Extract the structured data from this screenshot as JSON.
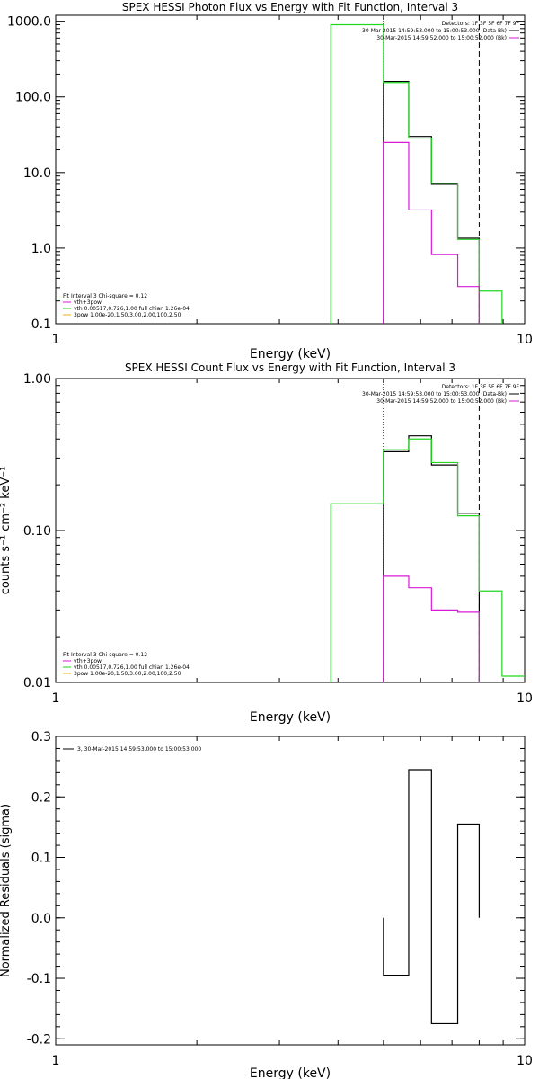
{
  "colors": {
    "black": "#000000",
    "green": "#22d622",
    "magenta": "#d81ad8"
  },
  "chart_data": [
    {
      "type": "line",
      "title": "SPEX HESSI Photon Flux vs Energy with Fit Function, Interval 3",
      "xlabel": "Energy (keV)",
      "ylabel": "",
      "xscale": "log",
      "yscale": "log",
      "xlim": [
        1,
        10
      ],
      "ylim": [
        0.1,
        1200
      ],
      "x_ticks": [
        "1",
        "10"
      ],
      "y_ticks": [
        {
          "value": 0.1,
          "label": "0.1"
        },
        {
          "value": 1,
          "label": "1.0"
        },
        {
          "value": 10,
          "label": "10.0"
        },
        {
          "value": 100,
          "label": "100.0"
        },
        {
          "value": 1000,
          "label": "1000.0"
        }
      ],
      "detectors": "Detectors: 1F 3F 5F 6F 7F 9F",
      "time_entries": [
        {
          "text": "30-Mar-2015 14:59:53.000 to 15:00:53.000 (Data-Bk)",
          "color": "#000000"
        },
        {
          "text": "30-Mar-2015 14:59:52.000 to 15:00:52.000 (Bk)",
          "color": "#d81ad8"
        }
      ],
      "fit_legend": {
        "header": "Fit Interval 3   Chi-square = 0.12",
        "items": [
          {
            "text": "vth+3pow",
            "color": "#d81ad8"
          },
          {
            "text": "vth 0.00517,0.726,1.00  full chian 1.26e-04",
            "color": "#22d622"
          },
          {
            "text": "3pow 1.00e-20,1.50,3.00,2.00,100,2.50",
            "color": "#e8b020"
          }
        ]
      },
      "vlines": [
        {
          "x": 5.0,
          "style": "dotted"
        },
        {
          "x": 8.0,
          "style": "dashed"
        }
      ],
      "series": [
        {
          "name": "Data-Bk",
          "color": "#000000",
          "edges": [
            5.0,
            5.66,
            6.33,
            7.2,
            8.0
          ],
          "values": [
            160,
            30,
            7.0,
            1.35
          ]
        },
        {
          "name": "vth+3pow",
          "color": "#22d622",
          "edges": [
            3.86,
            5.0,
            5.66,
            6.33,
            7.2,
            8.0,
            8.95
          ],
          "values": [
            900,
            155,
            28.5,
            7.2,
            1.3,
            0.27
          ]
        },
        {
          "name": "Bk",
          "color": "#d81ad8",
          "edges": [
            5.0,
            5.66,
            6.33,
            7.2,
            8.0
          ],
          "values": [
            25,
            3.2,
            0.82,
            0.31
          ]
        }
      ]
    },
    {
      "type": "line",
      "title": "SPEX HESSI Count Flux vs Energy with Fit Function, Interval 3",
      "xlabel": "Energy (keV)",
      "ylabel": "counts s⁻¹ cm⁻² keV⁻¹",
      "xscale": "log",
      "yscale": "log",
      "xlim": [
        1,
        10
      ],
      "ylim": [
        0.01,
        1.0
      ],
      "x_ticks": [
        "1",
        "10"
      ],
      "y_ticks": [
        {
          "value": 0.01,
          "label": "0.01"
        },
        {
          "value": 0.1,
          "label": "0.10"
        },
        {
          "value": 1,
          "label": "1.00"
        }
      ],
      "detectors": "Detectors: 1F 3F 5F 6F 7F 9F",
      "time_entries": [
        {
          "text": "30-Mar-2015 14:59:53.000 to 15:00:53.000 (Data-Bk)",
          "color": "#000000"
        },
        {
          "text": "30-Mar-2015 14:59:52.000 to 15:00:52.000 (Bk)",
          "color": "#d81ad8"
        }
      ],
      "fit_legend": {
        "header": "Fit Interval 3   Chi-square = 0.12",
        "items": [
          {
            "text": "vth+3pow",
            "color": "#d81ad8"
          },
          {
            "text": "vth 0.00517,0.726,1.00  full chian 1.26e-04",
            "color": "#22d622"
          },
          {
            "text": "3pow 1.00e-20,1.50,3.00,2.00,100,2.50",
            "color": "#e8b020"
          }
        ]
      },
      "vlines": [
        {
          "x": 5.0,
          "style": "dotted"
        },
        {
          "x": 8.0,
          "style": "dashed"
        }
      ],
      "series": [
        {
          "name": "Data-Bk",
          "color": "#000000",
          "edges": [
            5.0,
            5.66,
            6.33,
            7.2,
            8.0
          ],
          "values": [
            0.33,
            0.42,
            0.27,
            0.13
          ]
        },
        {
          "name": "vth+3pow",
          "color": "#22d622",
          "edges": [
            3.86,
            5.0,
            5.66,
            6.33,
            7.2,
            8.0,
            8.95,
            10.0
          ],
          "values": [
            0.15,
            0.34,
            0.4,
            0.28,
            0.125,
            0.04,
            0.011
          ]
        },
        {
          "name": "Bk",
          "color": "#d81ad8",
          "edges": [
            5.0,
            5.66,
            6.33,
            7.2,
            8.0
          ],
          "values": [
            0.05,
            0.042,
            0.03,
            0.029
          ]
        }
      ]
    },
    {
      "type": "bar",
      "title": "",
      "xlabel": "Energy (keV)",
      "ylabel": "Normalized Residuals (sigma)",
      "xscale": "log",
      "yscale": "linear",
      "xlim": [
        1,
        10
      ],
      "ylim": [
        -0.21,
        0.3
      ],
      "x_ticks": [
        "1",
        "10"
      ],
      "y_ticks": [
        {
          "value": -0.2,
          "label": "-0.2"
        },
        {
          "value": -0.1,
          "label": "-0.1"
        },
        {
          "value": 0.0,
          "label": "0.0"
        },
        {
          "value": 0.1,
          "label": "0.1"
        },
        {
          "value": 0.2,
          "label": "0.2"
        },
        {
          "value": 0.3,
          "label": "0.3"
        }
      ],
      "legend": "3, 30-Mar-2015 14:59:53.000 to 15:00:53.000",
      "series": [
        {
          "name": "3, 30-Mar-2015 14:59:53.000 to 15:00:53.000",
          "color": "#000000",
          "edges": [
            5.0,
            5.66,
            6.33,
            7.2,
            8.0
          ],
          "values": [
            -0.095,
            0.245,
            -0.175,
            0.155
          ]
        }
      ]
    }
  ]
}
